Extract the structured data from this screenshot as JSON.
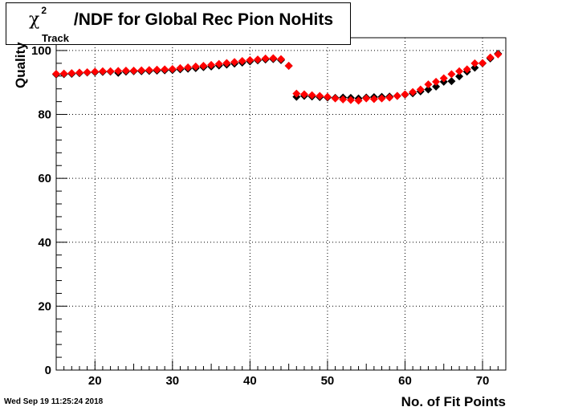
{
  "chart_data": {
    "type": "scatter",
    "title": {
      "chi": "χ",
      "sup": "2",
      "sub": "Track",
      "main": "/NDF for Global Rec Pion NoHits"
    },
    "xlabel": "No. of Fit Points",
    "ylabel": "Quality",
    "xlim": [
      15,
      73
    ],
    "ylim": [
      0,
      104
    ],
    "x_ticks": [
      20,
      30,
      40,
      50,
      60,
      70
    ],
    "y_ticks": [
      0,
      20,
      40,
      60,
      80,
      100
    ],
    "grid": true,
    "series": [
      {
        "color": "#000000",
        "marker": "diamond",
        "x": [
          15,
          16,
          17,
          18,
          19,
          20,
          21,
          22,
          23,
          24,
          25,
          26,
          27,
          28,
          29,
          30,
          31,
          32,
          33,
          34,
          35,
          36,
          37,
          38,
          39,
          40,
          41,
          42,
          43,
          44,
          45,
          46,
          47,
          48,
          49,
          50,
          51,
          52,
          53,
          54,
          55,
          56,
          57,
          58,
          59,
          60,
          61,
          62,
          63,
          64,
          65,
          66,
          67,
          68,
          69,
          70,
          71,
          72
        ],
        "y": [
          92.5,
          92.6,
          92.7,
          92.9,
          93.1,
          93.2,
          93.3,
          93.4,
          93.0,
          93.4,
          93.5,
          93.5,
          93.6,
          93.7,
          93.8,
          93.9,
          94.1,
          94.3,
          94.5,
          94.8,
          95.0,
          95.3,
          95.6,
          95.9,
          96.2,
          96.6,
          96.9,
          97.2,
          97.3,
          97.0,
          95.2,
          85.5,
          85.8,
          85.6,
          85.4,
          85.3,
          85.2,
          85.3,
          85.2,
          85.0,
          85.3,
          85.4,
          85.5,
          85.6,
          85.8,
          86.2,
          86.6,
          87.2,
          87.8,
          88.7,
          90.2,
          90.4,
          91.9,
          93.4,
          94.6,
          96.0,
          97.5,
          99.0
        ]
      },
      {
        "color": "#ff0000",
        "marker": "diamond",
        "x": [
          15,
          16,
          17,
          18,
          19,
          20,
          21,
          22,
          23,
          24,
          25,
          26,
          27,
          28,
          29,
          30,
          31,
          32,
          33,
          34,
          35,
          36,
          37,
          38,
          39,
          40,
          41,
          42,
          43,
          44,
          45,
          46,
          47,
          48,
          49,
          50,
          51,
          52,
          53,
          54,
          55,
          56,
          57,
          58,
          59,
          60,
          61,
          62,
          63,
          64,
          65,
          66,
          67,
          68,
          69,
          70,
          71,
          72
        ],
        "y": [
          92.7,
          92.8,
          92.9,
          93.1,
          93.2,
          93.4,
          93.5,
          93.5,
          93.6,
          93.7,
          93.7,
          93.8,
          93.9,
          94.0,
          94.1,
          94.2,
          94.5,
          94.7,
          95.0,
          95.2,
          95.5,
          95.8,
          96.1,
          96.4,
          96.7,
          97.0,
          97.2,
          97.5,
          97.6,
          97.3,
          95.2,
          86.5,
          86.3,
          86.0,
          85.8,
          85.5,
          85.0,
          84.7,
          84.5,
          84.3,
          85.0,
          84.8,
          85.0,
          85.3,
          85.8,
          86.3,
          87.0,
          87.8,
          89.4,
          90.2,
          91.3,
          92.6,
          93.5,
          94.1,
          96.0,
          96.1,
          97.8,
          98.8
        ]
      }
    ]
  },
  "datestamp": "Wed Sep 19 11:25:24 2018"
}
